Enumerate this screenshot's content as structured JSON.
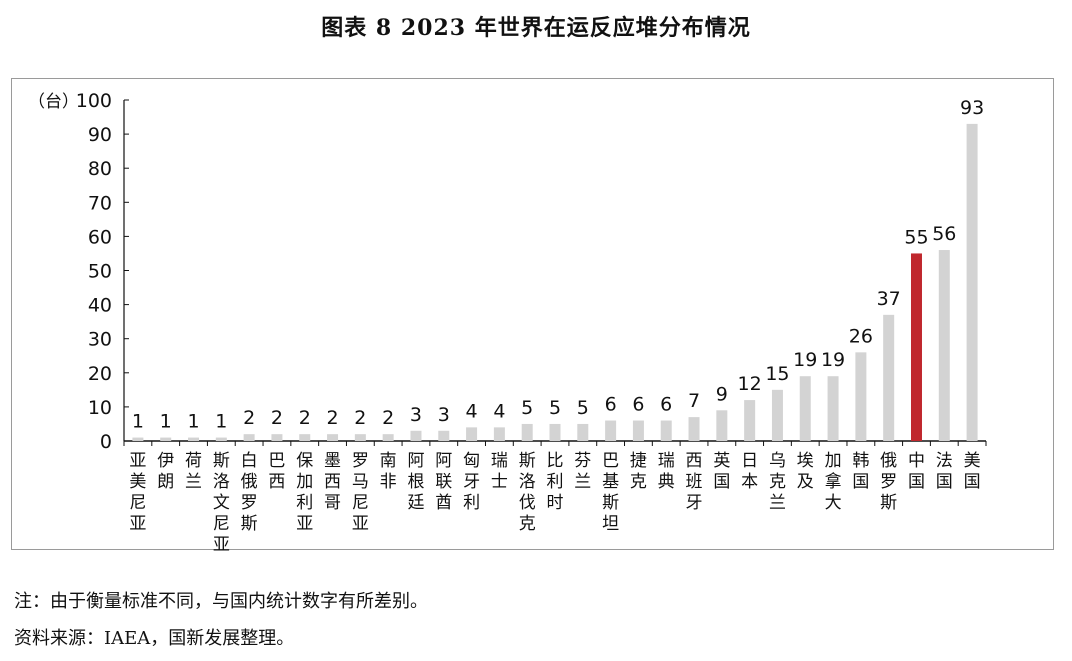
{
  "title": "图表 8  2023 年世界在运反应堆分布情况",
  "notes": {
    "note": "注：由于衡量标准不同，与国内统计数字有所差别。",
    "source": "资料来源：IAEA，国新发展整理。"
  },
  "chart_data": {
    "type": "bar",
    "unit_label": "（台）",
    "ylim": [
      0,
      100
    ],
    "yticks": [
      0,
      10,
      20,
      30,
      40,
      50,
      60,
      70,
      80,
      90,
      100
    ],
    "categories": [
      "亚美尼亚",
      "伊朗",
      "荷兰",
      "斯洛文尼亚",
      "白俄罗斯",
      "巴西",
      "保加利亚",
      "墨西哥",
      "罗马尼亚",
      "南非",
      "阿根廷",
      "阿联酋",
      "匈牙利",
      "瑞士",
      "斯洛伐克",
      "比利时",
      "芬兰",
      "巴基斯坦",
      "捷克",
      "瑞典",
      "西班牙",
      "英国",
      "日本",
      "乌克兰",
      "埃及",
      "加拿大",
      "韩国",
      "俄罗斯",
      "中国",
      "法国",
      "美国"
    ],
    "values": [
      1,
      1,
      1,
      1,
      2,
      2,
      2,
      2,
      2,
      2,
      3,
      3,
      4,
      4,
      5,
      5,
      5,
      6,
      6,
      6,
      7,
      9,
      12,
      15,
      19,
      19,
      26,
      37,
      55,
      56,
      93
    ],
    "highlight_category": "中国",
    "colors": {
      "default": "#d3d3d3",
      "highlight": "#c0272d",
      "axis": "#111111"
    },
    "grid": false,
    "legend": "none"
  }
}
